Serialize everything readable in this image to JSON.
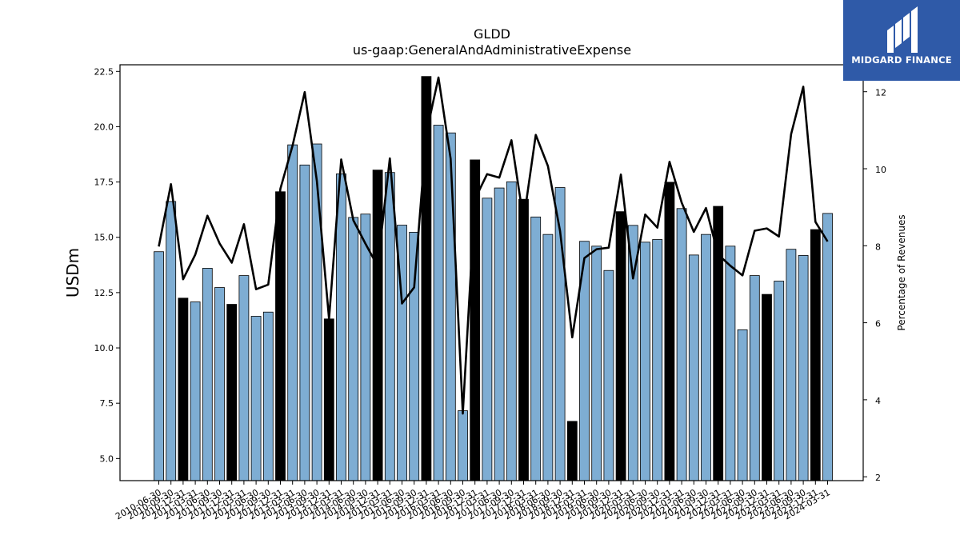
{
  "chart_data": {
    "type": "bar",
    "title": "GLDD",
    "subtitle": "us-gaap:GeneralAndAdministrativeExpense",
    "ylabel": "USDm",
    "y2label": "Percentage of Revenues",
    "ylim": [
      4.0,
      22.8
    ],
    "y2lim": [
      1.9,
      12.7
    ],
    "yticks": [
      5.0,
      7.5,
      10.0,
      12.5,
      15.0,
      17.5,
      20.0,
      22.5
    ],
    "y2ticks": [
      2,
      4,
      6,
      8,
      10,
      12
    ],
    "categories": [
      "2010-06-30",
      "2010-09-30",
      "2010-12-31",
      "2011-03-31",
      "2011-06-30",
      "2011-09-30",
      "2011-12-31",
      "2012-03-31",
      "2012-06-30",
      "2012-09-30",
      "2012-12-31",
      "2013-03-31",
      "2013-06-30",
      "2013-09-30",
      "2013-12-31",
      "2014-03-31",
      "2014-06-30",
      "2014-09-30",
      "2014-12-31",
      "2015-03-31",
      "2015-06-30",
      "2015-09-30",
      "2015-12-31",
      "2016-03-31",
      "2016-06-30",
      "2016-09-30",
      "2016-12-31",
      "2017-03-31",
      "2017-06-30",
      "2017-09-30",
      "2017-12-31",
      "2018-03-31",
      "2018-06-30",
      "2018-09-30",
      "2018-12-31",
      "2019-03-31",
      "2019-06-30",
      "2019-09-30",
      "2019-12-31",
      "2020-03-31",
      "2020-06-30",
      "2020-09-30",
      "2020-12-31",
      "2021-03-31",
      "2021-06-30",
      "2021-09-30",
      "2021-12-31",
      "2022-03-31",
      "2022-06-30",
      "2022-09-30",
      "2022-12-31",
      "2023-03-31",
      "2023-06-30",
      "2023-09-30",
      "2023-12-31",
      "2024-03-31"
    ],
    "values": [
      14.35,
      16.62,
      12.25,
      12.08,
      13.6,
      12.73,
      11.97,
      13.27,
      11.43,
      11.62,
      17.06,
      19.18,
      18.27,
      19.22,
      11.31,
      17.87,
      15.9,
      16.05,
      18.04,
      17.93,
      15.55,
      15.23,
      22.27,
      20.07,
      19.72,
      7.16,
      18.5,
      16.77,
      17.23,
      17.51,
      16.72,
      15.92,
      15.13,
      17.25,
      6.68,
      14.82,
      14.6,
      13.5,
      16.16,
      15.54,
      14.78,
      14.9,
      17.49,
      16.3,
      14.2,
      15.13,
      16.4,
      14.6,
      10.82,
      13.27,
      12.42,
      13.02,
      14.46,
      14.18,
      15.35,
      16.08
    ],
    "highlighted": [
      false,
      false,
      true,
      false,
      false,
      false,
      true,
      false,
      false,
      false,
      true,
      false,
      false,
      false,
      true,
      false,
      false,
      false,
      true,
      false,
      false,
      false,
      true,
      false,
      false,
      false,
      true,
      false,
      false,
      false,
      true,
      false,
      false,
      false,
      true,
      false,
      false,
      false,
      true,
      false,
      false,
      false,
      true,
      false,
      false,
      false,
      true,
      false,
      false,
      false,
      true,
      false,
      false,
      false,
      true,
      false
    ],
    "series_pct": [
      7.98,
      9.6,
      7.13,
      7.77,
      8.78,
      8.06,
      7.56,
      8.56,
      6.87,
      6.99,
      9.48,
      10.6,
      11.99,
      9.68,
      6.1,
      10.24,
      8.66,
      8.05,
      7.47,
      10.27,
      6.5,
      6.92,
      10.92,
      12.37,
      10.26,
      3.64,
      9.21,
      9.86,
      9.77,
      10.74,
      8.66,
      10.88,
      10.07,
      8.38,
      5.62,
      7.68,
      7.91,
      7.95,
      9.85,
      7.15,
      8.81,
      8.47,
      10.18,
      9.12,
      8.36,
      8.98,
      7.77,
      7.48,
      7.23,
      8.39,
      8.45,
      8.24,
      10.9,
      12.13,
      8.62,
      8.11
    ],
    "colors": {
      "bar": "#7eadd3",
      "bar_highlight": "#000000",
      "bar_edge": "#000000",
      "line": "#000000"
    },
    "grid": false,
    "legend": "none"
  },
  "logo": {
    "text": "MIDGARD FINANCE",
    "icon": "midgard-logo-icon",
    "background": "#2f5aa8"
  }
}
